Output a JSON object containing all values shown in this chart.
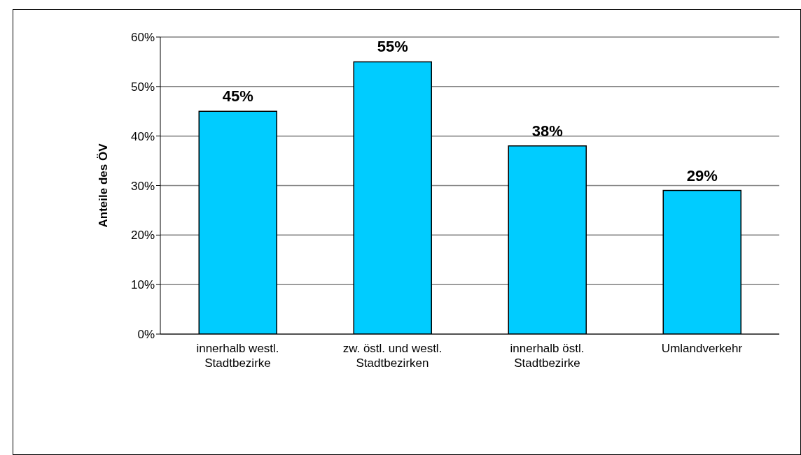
{
  "chart_data": {
    "type": "bar",
    "ylabel": "Anteile des ÖV",
    "categories": [
      "innerhalb westl. Stadtbezirke",
      "zw. östl. und westl. Stadtbezirken",
      "innerhalb östl. Stadtbezirke",
      "Umlandverkehr"
    ],
    "values": [
      45,
      55,
      38,
      29
    ],
    "color": "#00ccff",
    "value_labels": [
      "45%",
      "55%",
      "38%",
      "29%"
    ],
    "ylim": [
      0,
      60
    ],
    "yticks": [
      {
        "value": 0,
        "label": "0%"
      },
      {
        "value": 10,
        "label": "10%"
      },
      {
        "value": 20,
        "label": "20%"
      },
      {
        "value": 30,
        "label": "30%"
      },
      {
        "value": 40,
        "label": "40%"
      },
      {
        "value": 50,
        "label": "50%"
      },
      {
        "value": 60,
        "label": "60%"
      }
    ],
    "grid": "y"
  }
}
